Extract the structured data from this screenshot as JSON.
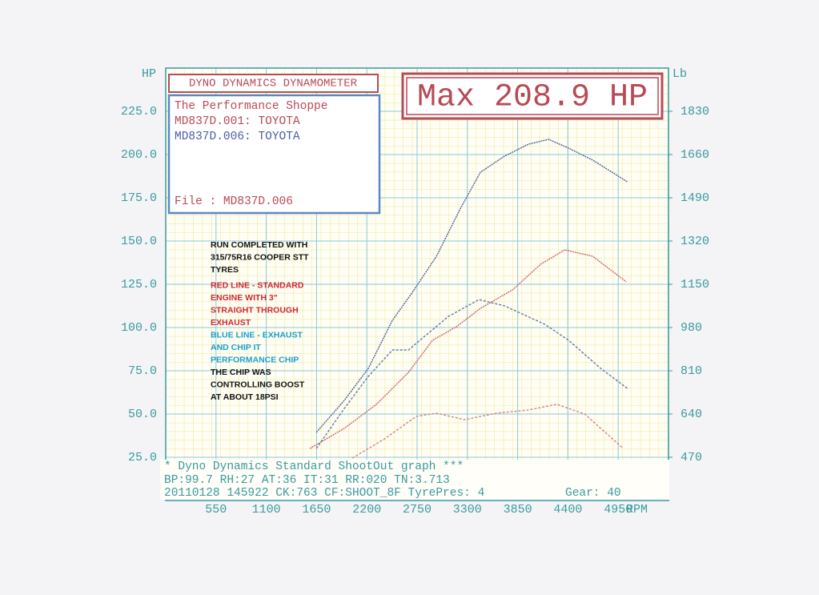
{
  "chart_data": {
    "type": "line",
    "header": "DYNO DYNAMICS DYNAMOMETER",
    "max_label": "Max 208.9 HP",
    "info": [
      "The Performance Shoppe",
      "MD837D.001: TOYOTA",
      "MD837D.006: TOYOTA",
      "File    : MD837D.006"
    ],
    "info_colors": [
      "#b84a55",
      "#b84a55",
      "#4a5fa8",
      "#b84a55"
    ],
    "y_label": "HP",
    "y2_label": "Lb",
    "x_label": "RPM",
    "annotations": [
      {
        "text": "RUN COMPLETED WITH",
        "color": "#111111"
      },
      {
        "text": "315/75R16 COOPER STT",
        "color": "#111111"
      },
      {
        "text": "TYRES",
        "color": "#111111"
      },
      {
        "text": "RED LINE - STANDARD",
        "color": "#d0282e"
      },
      {
        "text": "ENGINE WITH 3\"",
        "color": "#d0282e"
      },
      {
        "text": "STRAIGHT THROUGH",
        "color": "#d0282e"
      },
      {
        "text": "EXHAUST",
        "color": "#d0282e"
      },
      {
        "text": "BLUE LINE - EXHAUST",
        "color": "#1a9fd0"
      },
      {
        "text": "AND CHIP IT",
        "color": "#1a9fd0"
      },
      {
        "text": "PERFORMANCE CHIP",
        "color": "#1a9fd0"
      },
      {
        "text": "THE CHIP WAS",
        "color": "#111111"
      },
      {
        "text": "CONTROLLING BOOST",
        "color": "#111111"
      },
      {
        "text": "AT ABOUT 18PSI",
        "color": "#111111"
      }
    ],
    "footer": [
      "* Dyno Dynamics Standard ShootOut graph ***",
      "BP:99.7  RH:27 AT:36  IT:31  RR:020 TN:3.713",
      "20110128 145922 CK:763 CF:SHOOT_8F TyrePres: 4",
      "Gear: 40"
    ],
    "xlim": [
      0,
      5500
    ],
    "xticks": [
      550,
      1100,
      1650,
      2200,
      2750,
      3300,
      3850,
      4400,
      4950
    ],
    "ylim": [
      0,
      250
    ],
    "yticks": [
      {
        "value": 25,
        "label": "25.0"
      },
      {
        "value": 50,
        "label": "50.0"
      },
      {
        "value": 75,
        "label": "75.0"
      },
      {
        "value": 100,
        "label": "100.0"
      },
      {
        "value": 125,
        "label": "125.0"
      },
      {
        "value": 150,
        "label": "150.0"
      },
      {
        "value": 175,
        "label": "175.0"
      },
      {
        "value": 200,
        "label": "200.0"
      },
      {
        "value": 225,
        "label": "225.0"
      }
    ],
    "y2lim": [
      300,
      2000
    ],
    "y2ticks": [
      470,
      640,
      810,
      980,
      1150,
      1320,
      1490,
      1660,
      1830
    ],
    "grid": true,
    "series": [
      {
        "color": "#4a5f9a",
        "dash": "2,1",
        "x": [
          1648,
          1954,
          2217,
          2480,
          2699,
          2962,
          3225,
          3444,
          3707,
          3970,
          4189,
          4408,
          4671,
          5048
        ],
        "values": [
          39.4,
          57.9,
          76.4,
          104.2,
          120.4,
          141.2,
          168.9,
          189.8,
          199.1,
          206.0,
          208.8,
          203.7,
          196.8,
          184.3
        ]
      },
      {
        "color": "#d06060",
        "dash": "2,1",
        "x": [
          1578,
          1954,
          2305,
          2656,
          2918,
          3181,
          3444,
          3795,
          4102,
          4365,
          4671,
          5039
        ],
        "values": [
          30.1,
          41.7,
          55.6,
          74.1,
          92.6,
          100.5,
          111.1,
          121.8,
          136.6,
          144.9,
          141.2,
          126.4
        ]
      },
      {
        "color": "#5a7aa8",
        "dash": "3,2",
        "axis": "y2",
        "x": [
          1648,
          1954,
          2217,
          2480,
          2656,
          2831,
          3094,
          3427,
          3707,
          4145,
          4408,
          4759,
          5048
        ],
        "values": [
          505,
          662,
          788,
          892,
          892,
          945,
          1024,
          1090,
          1065,
          993,
          930,
          819,
          741
        ]
      },
      {
        "color": "#d88080",
        "dash": "3,2",
        "axis": "y2",
        "x": [
          2042,
          2393,
          2743,
          2962,
          3269,
          3620,
          3970,
          4277,
          4584,
          5004
        ],
        "values": [
          467,
          542,
          631,
          643,
          618,
          643,
          656,
          678,
          640,
          505
        ]
      }
    ]
  }
}
